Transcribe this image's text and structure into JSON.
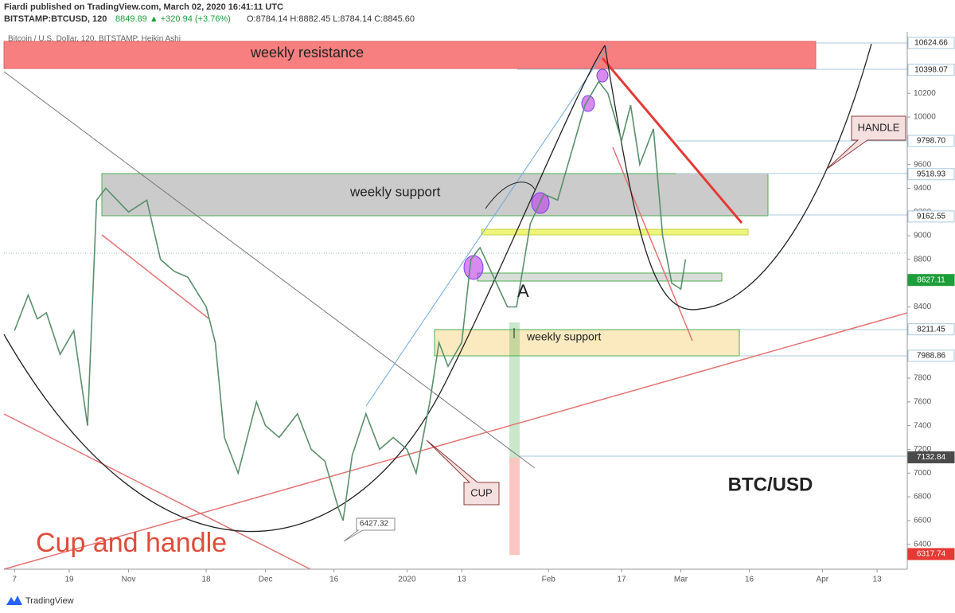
{
  "header": {
    "publisher": "Fiardi published on TradingView.com, March 02, 2020 16:41:11 UTC",
    "symbol": "BITSTAMP:BTCUSD, 120",
    "quote": "8849.89 ▲ +320.94 (+3.76%)",
    "ohlc": "O:8784.14 H:8882.45 L:8784.14 C:8845.60",
    "brand": "TradingView"
  },
  "chart_data": {
    "type": "line",
    "title": "Bitcoin / U.S. Dollar, 120, BITSTAMP, Heikin Ashi",
    "annotations": [
      "weekly resistance",
      "weekly support",
      "weekly support",
      "A",
      "CUP",
      "HANDLE",
      "BTC/USD",
      "Cup and handle",
      "6427.32"
    ],
    "series": [
      {
        "name": "BTCUSD",
        "color": "#5a8f6c",
        "x": [
          0,
          3,
          5,
          7,
          10,
          13,
          16,
          18,
          20,
          25,
          29,
          32,
          35,
          38,
          42,
          44,
          46,
          49,
          53,
          55,
          58,
          62,
          65,
          68,
          71,
          72,
          74,
          77,
          80,
          83,
          86,
          88,
          91,
          93,
          95,
          98,
          100,
          102,
          105,
          108,
          110,
          113,
          116,
          119,
          122,
          125,
          128,
          130,
          133,
          135,
          137,
          140,
          142,
          144,
          146,
          147
        ],
        "values": [
          8200,
          8500,
          8300,
          8350,
          8000,
          8200,
          7400,
          9300,
          9400,
          9200,
          9300,
          8800,
          8700,
          8650,
          8400,
          8100,
          7300,
          7000,
          7600,
          7400,
          7300,
          7500,
          7200,
          7100,
          6700,
          6600,
          7150,
          7500,
          7200,
          7300,
          7200,
          7000,
          7600,
          8100,
          7900,
          8100,
          8800,
          8900,
          8650,
          8400,
          8400,
          9100,
          9350,
          9300,
          9700,
          10100,
          10300,
          10200,
          9800,
          10100,
          9600,
          9900,
          9000,
          8600,
          8550,
          8800
        ]
      }
    ],
    "ylim": [
      6190,
      10718
    ],
    "yticks": [
      6400,
      6600,
      6800,
      7000,
      7200,
      7400,
      7600,
      7800,
      8000,
      8200,
      8400,
      8600,
      8800,
      9000,
      9200,
      9400,
      9600,
      9800,
      10000,
      10200
    ],
    "xlim": [
      -2.3,
      195.6
    ],
    "xticks": [
      {
        "value": 0,
        "label": "7"
      },
      {
        "value": 12,
        "label": "19"
      },
      {
        "value": 25,
        "label": "Nov"
      },
      {
        "value": 42,
        "label": "18"
      },
      {
        "value": 55,
        "label": "Dec"
      },
      {
        "value": 70,
        "label": "16"
      },
      {
        "value": 86,
        "label": "2020"
      },
      {
        "value": 98,
        "label": "13"
      },
      {
        "value": 117,
        "label": "Feb"
      },
      {
        "value": 133,
        "label": "17"
      },
      {
        "value": 146,
        "label": "Mar"
      },
      {
        "value": 161,
        "label": "16"
      },
      {
        "value": 177,
        "label": "Apr"
      },
      {
        "value": 189,
        "label": "13"
      }
    ],
    "levels": [
      10624.66,
      10398.07,
      {
        "value": 9798.7,
        "label": "9798.70"
      },
      9518.93,
      9162.55,
      8627.11,
      8211.45,
      7988.86,
      7132.84,
      6317.74
    ],
    "level_colors": [
      "#ffffff",
      "#ffffff",
      "#ffffff",
      "#ffffff",
      "#ffffff",
      "#1e9e3a",
      "#ffffff",
      "#ffffff",
      "#4a4a4a",
      "#e53935"
    ]
  }
}
